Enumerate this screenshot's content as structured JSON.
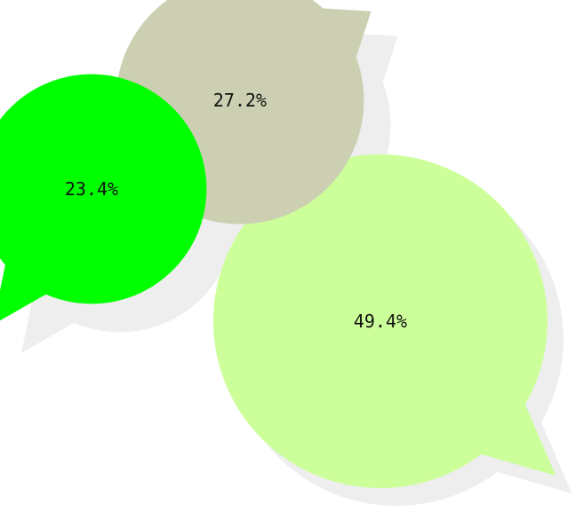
{
  "chart_data": {
    "type": "bubble",
    "title": "",
    "series": [
      {
        "value": 49.4,
        "label": "49.4%",
        "color": "#ccff99"
      },
      {
        "value": 27.2,
        "label": "27.2%",
        "color": "#cccfb2"
      },
      {
        "value": 23.4,
        "label": "23.4%",
        "color": "#00ff00"
      }
    ],
    "shadow_color": "#eeeeee",
    "label_color": "#111111"
  }
}
